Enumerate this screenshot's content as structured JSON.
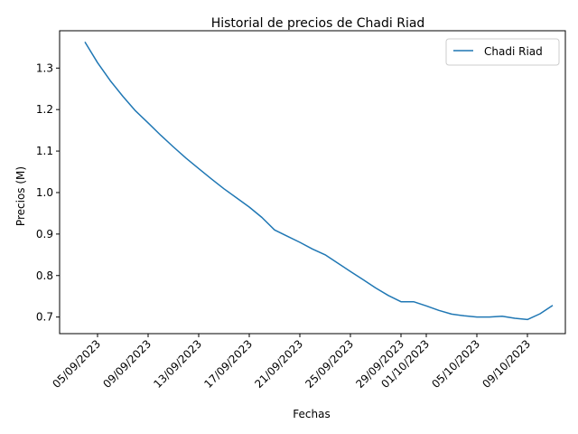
{
  "chart_data": {
    "type": "line",
    "title": "Historial de precios de Chadi Riad",
    "xlabel": "Fechas",
    "ylabel": "Precios (M)",
    "x_type": "date",
    "xlim": [
      "2023-09-02",
      "2023-10-12"
    ],
    "ylim": [
      0.66,
      1.39
    ],
    "grid": false,
    "legend_position": "top-right",
    "x_ticks": [
      {
        "value": "2023-09-05",
        "label": "05/09/2023"
      },
      {
        "value": "2023-09-09",
        "label": "09/09/2023"
      },
      {
        "value": "2023-09-13",
        "label": "13/09/2023"
      },
      {
        "value": "2023-09-17",
        "label": "17/09/2023"
      },
      {
        "value": "2023-09-21",
        "label": "21/09/2023"
      },
      {
        "value": "2023-09-25",
        "label": "25/09/2023"
      },
      {
        "value": "2023-09-29",
        "label": "29/09/2023"
      },
      {
        "value": "2023-10-01",
        "label": "01/10/2023"
      },
      {
        "value": "2023-10-05",
        "label": "05/10/2023"
      },
      {
        "value": "2023-10-09",
        "label": "09/10/2023"
      }
    ],
    "y_ticks": [
      {
        "value": 0.7,
        "label": "0.7"
      },
      {
        "value": 0.8,
        "label": "0.8"
      },
      {
        "value": 0.9,
        "label": "0.9"
      },
      {
        "value": 1.0,
        "label": "1.0"
      },
      {
        "value": 1.1,
        "label": "1.1"
      },
      {
        "value": 1.2,
        "label": "1.2"
      },
      {
        "value": 1.3,
        "label": "1.3"
      }
    ],
    "series": [
      {
        "name": "Chadi Riad",
        "color": "#1f77b4",
        "x": [
          "2023-09-04",
          "2023-09-05",
          "2023-09-06",
          "2023-09-07",
          "2023-09-08",
          "2023-09-09",
          "2023-09-10",
          "2023-09-11",
          "2023-09-12",
          "2023-09-13",
          "2023-09-14",
          "2023-09-15",
          "2023-09-16",
          "2023-09-17",
          "2023-09-18",
          "2023-09-19",
          "2023-09-20",
          "2023-09-21",
          "2023-09-22",
          "2023-09-23",
          "2023-09-24",
          "2023-09-25",
          "2023-09-26",
          "2023-09-27",
          "2023-09-28",
          "2023-09-29",
          "2023-09-30",
          "2023-10-01",
          "2023-10-02",
          "2023-10-03",
          "2023-10-04",
          "2023-10-05",
          "2023-10-06",
          "2023-10-07",
          "2023-10-08",
          "2023-10-09",
          "2023-10-10",
          "2023-10-11"
        ],
        "y": [
          1.363,
          1.313,
          1.27,
          1.232,
          1.197,
          1.168,
          1.138,
          1.11,
          1.083,
          1.058,
          1.033,
          1.009,
          0.987,
          0.965,
          0.94,
          0.91,
          0.895,
          0.88,
          0.864,
          0.85,
          0.83,
          0.81,
          0.79,
          0.77,
          0.752,
          0.737,
          0.737,
          0.727,
          0.716,
          0.707,
          0.703,
          0.7,
          0.7,
          0.702,
          0.697,
          0.694,
          0.708,
          0.728
        ]
      }
    ]
  }
}
